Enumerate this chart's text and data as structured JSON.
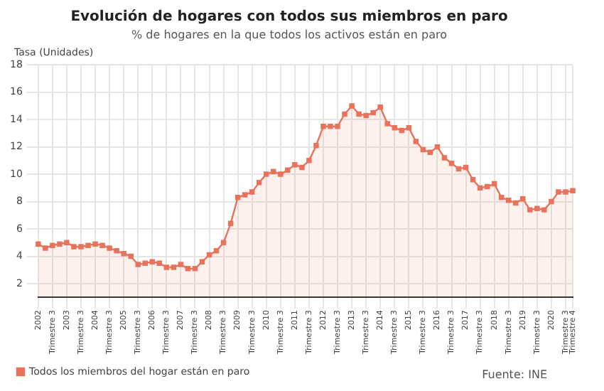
{
  "chart_data": {
    "type": "area",
    "title": "Evolución de hogares con todos sus miembros en paro",
    "subtitle": "% de hogares en la que todos los activos están en paro",
    "ylabel": "Tasa (Unidades)",
    "annotations": [
      "Fuente: INE"
    ],
    "categories": [
      "2002",
      null,
      "Trimestre 3",
      null,
      "2003",
      null,
      "Trimestre 3",
      null,
      "2004",
      null,
      "Trimestre 3",
      null,
      "2005",
      null,
      "Trimestre 3",
      null,
      "2006",
      null,
      "Trimestre 3",
      null,
      "2007",
      null,
      "Trimestre 3",
      null,
      "2008",
      null,
      "Trimestre 3",
      null,
      "2009",
      null,
      "Trimestre 3",
      null,
      "2010",
      null,
      "Trimestre 3",
      null,
      "2011",
      null,
      "Trimestre 3",
      null,
      "2012",
      null,
      "Trimestre 3",
      null,
      "2013",
      null,
      "Trimestre 3",
      null,
      "2014",
      null,
      "Trimestre 3",
      null,
      "2015",
      null,
      "Trimestre 3",
      null,
      "2016",
      null,
      "Trimestre 3",
      null,
      "2017",
      null,
      "Trimestre 3",
      null,
      "2018",
      null,
      "Trimestre 3",
      null,
      "2019",
      null,
      "Trimestre 3",
      null,
      "2020",
      null,
      "Trimestre 3",
      "Trimestre 4"
    ],
    "series": [
      {
        "name": "Todos los miembros del hogar están en paro",
        "color": "#e8735a",
        "values": [
          4.9,
          4.6,
          4.8,
          4.9,
          5.0,
          4.7,
          4.7,
          4.8,
          4.9,
          4.8,
          4.6,
          4.4,
          4.2,
          4.0,
          3.4,
          3.5,
          3.6,
          3.5,
          3.2,
          3.2,
          3.4,
          3.1,
          3.1,
          3.6,
          4.1,
          4.4,
          5.0,
          6.4,
          8.3,
          8.5,
          8.7,
          9.4,
          10.0,
          10.2,
          10.0,
          10.3,
          10.7,
          10.5,
          11.0,
          12.1,
          13.5,
          13.5,
          13.5,
          14.4,
          15.0,
          14.4,
          14.3,
          14.5,
          14.9,
          13.7,
          13.4,
          13.2,
          13.4,
          12.4,
          11.8,
          11.6,
          12.0,
          11.2,
          10.8,
          10.4,
          10.5,
          9.6,
          9.0,
          9.1,
          9.3,
          8.3,
          8.1,
          7.9,
          8.2,
          7.4,
          7.5,
          7.4,
          8.0,
          8.7,
          8.7,
          8.8
        ]
      }
    ],
    "ylim": [
      1,
      18
    ],
    "yticks": [
      2,
      4,
      6,
      8,
      10,
      12,
      14,
      16,
      18
    ],
    "grid": true,
    "legend": "bottom",
    "marker": "square"
  }
}
